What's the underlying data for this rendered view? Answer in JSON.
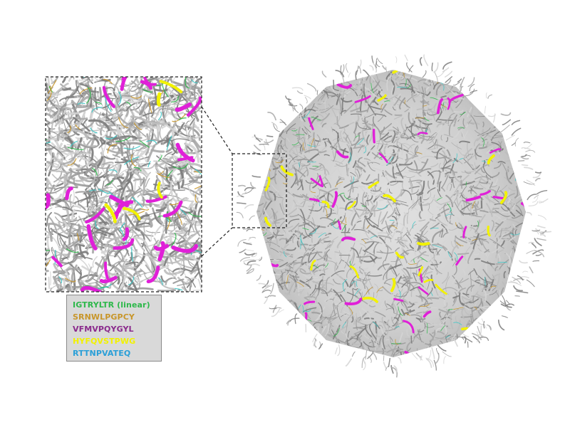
{
  "legend": {
    "entries": [
      {
        "label": "IGTRYLTR (linear)",
        "color": "#2db84a"
      },
      {
        "label": "SRNWLPGPCY",
        "color": "#c8962a"
      },
      {
        "label": "VFMVPQYGYL",
        "color": "#8a2a8c"
      },
      {
        "label": "HYFQVSTPWG",
        "color": "#f2f200"
      },
      {
        "label": "RTTNPVATEQ",
        "color": "#2a9fd8"
      }
    ]
  },
  "colors": {
    "protein": "#a9a9a9",
    "protein_dark": "#7c7c7c",
    "protein_light": "#d4d4d4",
    "background": "#ffffff",
    "magenta_highlight": "#e020d8",
    "cyan_highlight": "#3cc8c8",
    "zoom_frame": "#222222"
  },
  "figure": {
    "main_structure": "icosahedral-capsid-ribbon",
    "inset": "zoomed-capsid-surface",
    "connector": "dashed-zoom-lines"
  }
}
